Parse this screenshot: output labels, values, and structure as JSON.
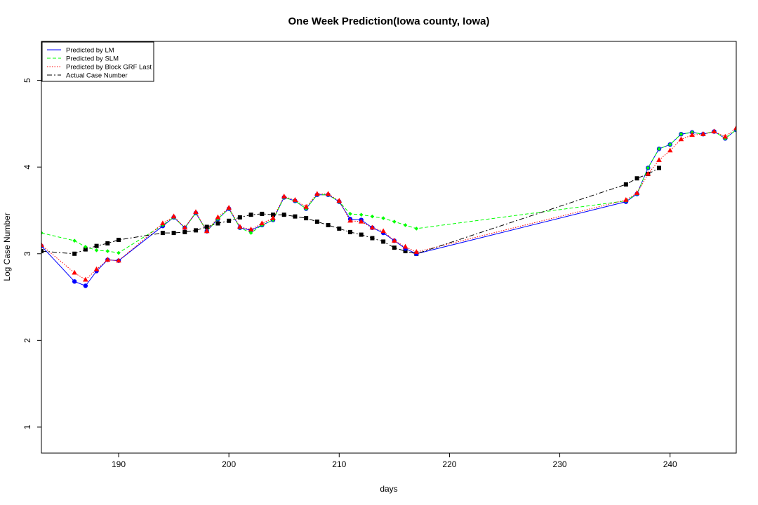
{
  "chart_data": {
    "type": "line",
    "title": "One Week Prediction(Iowa county, Iowa)",
    "xlabel": "days",
    "ylabel": "Log Case Number",
    "xlim": [
      183,
      246
    ],
    "ylim": [
      0.7,
      5.45
    ],
    "x_ticks": [
      190,
      200,
      210,
      220,
      230,
      240
    ],
    "y_ticks": [
      1,
      2,
      3,
      4,
      5
    ],
    "grid": false,
    "legend_position": "top-left",
    "x": [
      183,
      186,
      187,
      188,
      189,
      190,
      194,
      195,
      196,
      197,
      198,
      199,
      200,
      201,
      202,
      203,
      204,
      205,
      206,
      207,
      208,
      209,
      210,
      211,
      212,
      213,
      214,
      215,
      216,
      217,
      236,
      237,
      238,
      239,
      240,
      241,
      242,
      243,
      244,
      245,
      246
    ],
    "series": [
      {
        "name": "Predicted by LM",
        "color": "#0000ff",
        "line_style": "solid",
        "marker": "circle",
        "values": [
          3.09,
          2.68,
          2.63,
          2.8,
          2.93,
          2.92,
          3.32,
          3.42,
          3.3,
          3.47,
          3.26,
          3.4,
          3.52,
          3.3,
          3.27,
          3.33,
          3.39,
          3.65,
          3.61,
          3.52,
          3.68,
          3.68,
          3.6,
          3.4,
          3.39,
          3.3,
          3.24,
          3.15,
          3.06,
          3.0,
          3.6,
          3.69,
          3.99,
          4.21,
          4.26,
          4.38,
          4.4,
          4.38,
          4.41,
          4.33,
          4.43
        ]
      },
      {
        "name": "Predicted by SLM",
        "color": "#00ff00",
        "line_style": "dashed",
        "marker": "diamond",
        "values": [
          3.24,
          3.15,
          3.08,
          3.04,
          3.03,
          3.01,
          3.33,
          3.42,
          3.3,
          3.47,
          3.26,
          3.4,
          3.52,
          3.3,
          3.24,
          3.33,
          3.39,
          3.65,
          3.61,
          3.52,
          3.68,
          3.68,
          3.6,
          3.46,
          3.45,
          3.43,
          3.41,
          3.37,
          3.33,
          3.29,
          3.61,
          3.69,
          3.99,
          4.21,
          4.26,
          4.38,
          4.4,
          4.38,
          4.41,
          4.33,
          4.43
        ]
      },
      {
        "name": "Predicted by Block GRF Last",
        "color": "#ff0000",
        "line_style": "dotted",
        "marker": "triangle",
        "values": [
          3.1,
          2.78,
          2.7,
          2.82,
          2.93,
          2.92,
          3.35,
          3.43,
          3.3,
          3.48,
          3.26,
          3.42,
          3.53,
          3.31,
          3.28,
          3.35,
          3.41,
          3.66,
          3.62,
          3.54,
          3.69,
          3.69,
          3.61,
          3.38,
          3.37,
          3.3,
          3.26,
          3.15,
          3.08,
          3.02,
          3.62,
          3.7,
          3.92,
          4.08,
          4.19,
          4.32,
          4.37,
          4.38,
          4.41,
          4.35,
          4.45
        ]
      },
      {
        "name": "Actual Case Number",
        "color": "#000000",
        "line_style": "dotdash",
        "marker": "square",
        "values": [
          3.03,
          3.0,
          3.05,
          3.09,
          3.12,
          3.16,
          3.24,
          3.24,
          3.25,
          3.27,
          3.31,
          3.35,
          3.38,
          3.42,
          3.45,
          3.46,
          3.45,
          3.45,
          3.43,
          3.41,
          3.37,
          3.33,
          3.29,
          3.25,
          3.22,
          3.18,
          3.14,
          3.07,
          3.03,
          3.0,
          3.8,
          3.87,
          3.92,
          3.99,
          null,
          null,
          null,
          null,
          null,
          null,
          null
        ]
      }
    ]
  }
}
